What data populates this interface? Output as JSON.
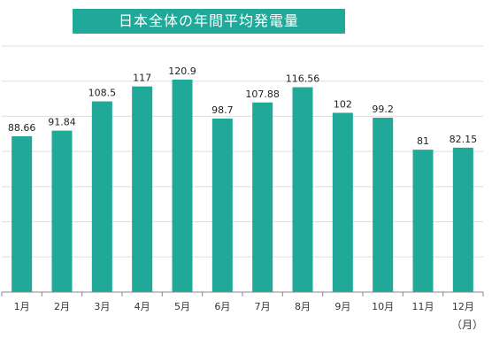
{
  "chart_data": {
    "type": "bar",
    "title": "日本全体の年間平均発電量",
    "categories": [
      "1月",
      "2月",
      "3月",
      "4月",
      "5月",
      "6月",
      "7月",
      "8月",
      "9月",
      "10月",
      "11月",
      "12月"
    ],
    "values": [
      88.66,
      91.84,
      108.5,
      117,
      120.9,
      98.7,
      107.88,
      116.56,
      102,
      99.2,
      81,
      82.15
    ],
    "value_labels": [
      "88.66",
      "91.84",
      "108.5",
      "117",
      "120.9",
      "98.7",
      "107.88",
      "116.56",
      "102",
      "99.2",
      "81",
      "82.15"
    ],
    "xlabel": "（月）",
    "ylabel": "",
    "ylim": [
      0,
      140
    ],
    "grid": true,
    "legend": "none",
    "bar_color": "#20a898",
    "grid_color": "#dddddd",
    "axis_color": "#888888"
  }
}
